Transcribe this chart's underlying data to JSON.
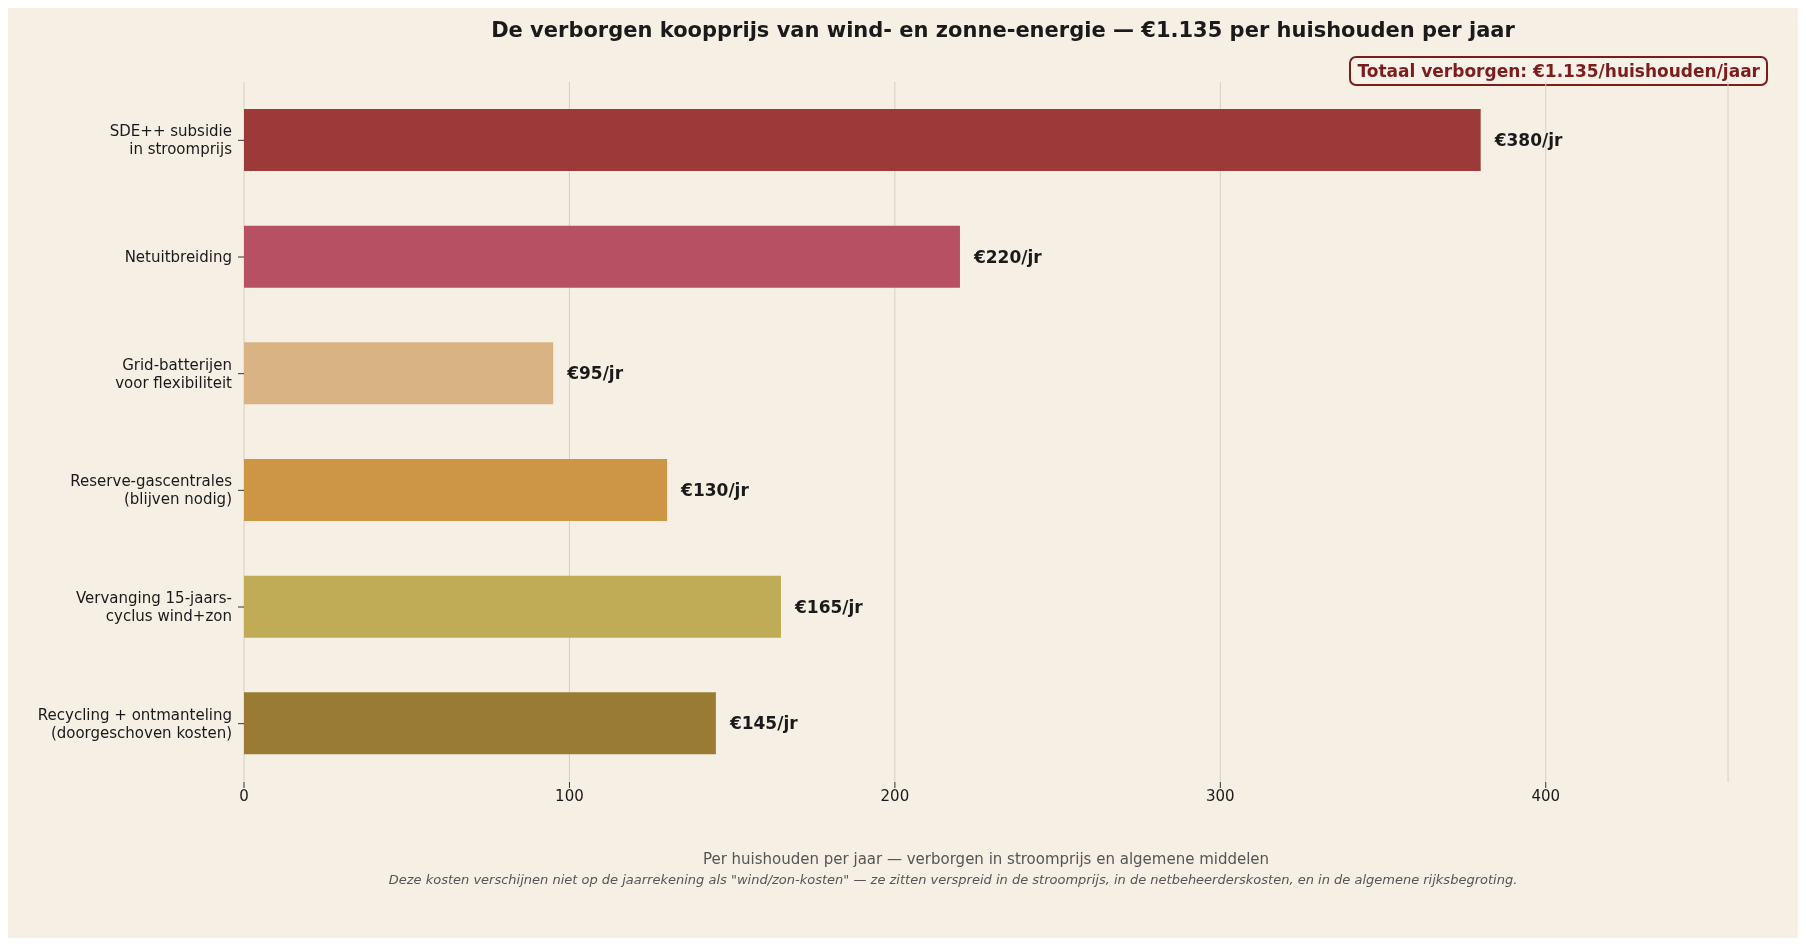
{
  "chart_data": {
    "type": "bar",
    "orientation": "horizontal",
    "title": "De verborgen koopprijs van wind- en zonne-energie — €1.135 per huishouden per jaar",
    "xlabel": "Per huishouden per jaar — verborgen in stroomprijs en algemene middelen",
    "categories": [
      "SDE++ subsidie\nin stroomprijs",
      "Netuitbreiding",
      "Grid-batterijen\nvoor flexibiliteit",
      "Reserve-gascentrales\n(blijven nodig)",
      "Vervanging 15-jaars-\ncyclus wind+zon",
      "Recycling + ontmanteling\n(doorgeschoven kosten)"
    ],
    "values": [
      380,
      220,
      95,
      130,
      165,
      145
    ],
    "colors": [
      "#9b3a38",
      "#b85064",
      "#d9b383",
      "#cd9645",
      "#c0ab57",
      "#9a7b33"
    ],
    "value_labels": [
      "€380/jr",
      "€220/jr",
      "€95/jr",
      "€130/jr",
      "€165/jr",
      "€145/jr"
    ],
    "xlim": [
      0,
      456
    ],
    "xticks": [
      0,
      100,
      200,
      300,
      400
    ],
    "grid": "x",
    "legend": false,
    "annotations": [
      "Totaal verborgen: €1.135/huishouden/jaar",
      "Deze kosten verschijnen niet op de jaarrekening als \"wind/zon-kosten\" — ze zitten verspreid in de stroomprijs, in de netbeheerderskosten, en in de algemene rijksbegroting."
    ]
  }
}
